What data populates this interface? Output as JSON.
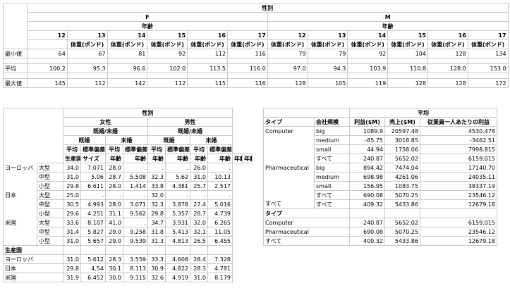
{
  "t1": {
    "var": "性別",
    "groups": [
      {
        "label": "F"
      },
      {
        "label": "M"
      }
    ],
    "age_label": "年齢",
    "measure": "体重(ポンド)",
    "ages": [
      "12",
      "13",
      "14",
      "15",
      "16",
      "17",
      "12",
      "13",
      "14",
      "15",
      "16",
      "17"
    ],
    "rows": [
      {
        "label": "最小値",
        "vals": [
          "64",
          "67",
          "81",
          "92",
          "112",
          "116",
          "79",
          "79",
          "92",
          "104",
          "128",
          "134"
        ]
      },
      {
        "label": "平均",
        "vals": [
          "100.2",
          "95.3",
          "96.6",
          "102.0",
          "113.5",
          "116.0",
          "97.0",
          "94.3",
          "103.9",
          "110.8",
          "128.0",
          "153.0"
        ]
      },
      {
        "label": "最大値",
        "vals": [
          "145",
          "112",
          "142",
          "112",
          "115",
          "116",
          "128",
          "105",
          "119",
          "128",
          "128",
          "172"
        ]
      }
    ]
  },
  "t2": {
    "var": "性別",
    "groups": [
      {
        "label": "女性"
      },
      {
        "label": "男性"
      }
    ],
    "marital": "既婚/未婚",
    "statuses": [
      "既婚",
      "未婚",
      "既婚",
      "未婚"
    ],
    "stats": [
      "平均",
      "標準偏差",
      "平均",
      "標準偏差",
      "平均",
      "標準偏差",
      "平均",
      "標準偏差"
    ],
    "unit": "年齢",
    "col_country": "生産国",
    "col_size": "サイズ",
    "rows": [
      {
        "country": "ヨーロッパ",
        "size": "大型",
        "vals": [
          "34.0",
          "7.071",
          "28.0",
          ".",
          ".",
          ".",
          "26.0",
          "."
        ]
      },
      {
        "country": "",
        "size": "中型",
        "vals": [
          "31.0",
          "5.06",
          "28.7",
          "5.508",
          "32.3",
          "5.62",
          "31.0",
          "10.13"
        ]
      },
      {
        "country": "",
        "size": "小型",
        "vals": [
          "29.8",
          "6.611",
          "28.0",
          "1.414",
          "33.8",
          "4.381",
          "25.7",
          "2.517"
        ]
      },
      {
        "country": "日本",
        "size": "大型",
        "vals": [
          "25.0",
          ".",
          ".",
          ".",
          "32.0",
          ".",
          ".",
          "."
        ]
      },
      {
        "country": "",
        "size": "中型",
        "vals": [
          "30.5",
          "4.993",
          "28.0",
          "3.071",
          "32.3",
          "3.878",
          "27.4",
          "5.016"
        ]
      },
      {
        "country": "",
        "size": "小型",
        "vals": [
          "29.6",
          "4.251",
          "31.1",
          "9.562",
          "29.8",
          "5.357",
          "28.7",
          "4.739"
        ]
      },
      {
        "country": "米国",
        "size": "大型",
        "vals": [
          "33.6",
          "8.107",
          "41.0",
          ".",
          "34.7",
          "3.931",
          "32.0",
          "6.265"
        ]
      },
      {
        "country": "",
        "size": "中型",
        "vals": [
          "31.4",
          "5.827",
          "29.0",
          "9.258",
          "31.8",
          "5.413",
          "32.1",
          "11.05"
        ]
      },
      {
        "country": "",
        "size": "小型",
        "vals": [
          "31.0",
          "5.657",
          "29.0",
          "9.539",
          "31.3",
          "4.813",
          "26.5",
          "6.455"
        ]
      }
    ],
    "sub_title": "生産国",
    "sub_rows": [
      {
        "label": "ヨーロッパ",
        "vals": [
          "31.0",
          "5.612",
          "28.3",
          "3.559",
          "33.3",
          "4.608",
          "28.4",
          "7.328"
        ]
      },
      {
        "label": "日本",
        "vals": [
          "29.8",
          "4.54",
          "30.1",
          "8.113",
          "30.9",
          "4.822",
          "28.3",
          "4.781"
        ]
      },
      {
        "label": "米国",
        "vals": [
          "31.9",
          "6.452",
          "30.0",
          "9.115",
          "32.6",
          "4.919",
          "31.0",
          "8.179"
        ]
      }
    ]
  },
  "t3": {
    "stat": "平均",
    "col_type": "タイプ",
    "col_size": "会社規模",
    "cols": [
      "利益($M)",
      "売上($M)",
      "従業員一人あたりの利益"
    ],
    "rows": [
      {
        "type": "Computer",
        "size": "big",
        "vals": [
          "1089.9",
          "20597.48",
          "4530.478"
        ]
      },
      {
        "type": "",
        "size": "medium",
        "vals": [
          "-85.75",
          "3018.85",
          "-3462.51"
        ]
      },
      {
        "type": "",
        "size": "small",
        "vals": [
          "44.94",
          "1758.06",
          "7998.815"
        ]
      },
      {
        "type": "",
        "size": "すべて",
        "vals": [
          "240.87",
          "5652.02",
          "6159.015"
        ]
      },
      {
        "type": "Pharmaceutical",
        "size": "big",
        "vals": [
          "894.42",
          "7474.04",
          "17140.70"
        ]
      },
      {
        "type": "",
        "size": "medium",
        "vals": [
          "698.98",
          "4261.06",
          "24035.11"
        ]
      },
      {
        "type": "",
        "size": "small",
        "vals": [
          "156.95",
          "1083.75",
          "38337.19"
        ]
      },
      {
        "type": "",
        "size": "すべて",
        "vals": [
          "690.08",
          "5070.25",
          "23546.12"
        ]
      },
      {
        "type": "すべて",
        "size": "すべて",
        "vals": [
          "409.32",
          "5433.86",
          "12679.18"
        ]
      }
    ],
    "sub_title": "タイプ",
    "sub_rows": [
      {
        "label": "Computer",
        "vals": [
          "240.87",
          "5652.02",
          "6159.015"
        ]
      },
      {
        "label": "Pharmaceutical",
        "vals": [
          "690.08",
          "5070.25",
          "23546.12"
        ]
      },
      {
        "label": "すべて",
        "vals": [
          "409.32",
          "5433.86",
          "12679.18"
        ]
      }
    ]
  }
}
